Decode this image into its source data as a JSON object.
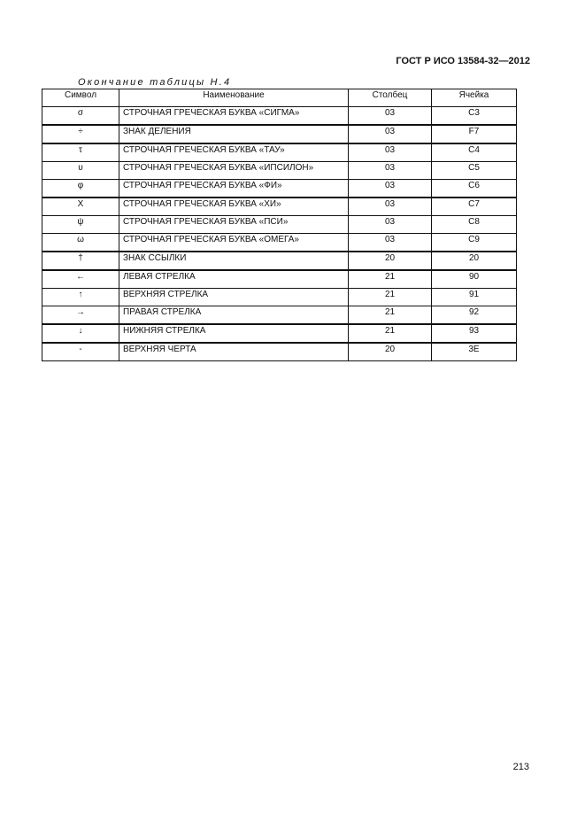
{
  "header": {
    "doc_id": "ГОСТ Р ИСО 13584-32—2012"
  },
  "caption": "Окончание таблицы Н.4",
  "table": {
    "columns": [
      "Символ",
      "Наименование",
      "Столбец",
      "Ячейка"
    ],
    "rows": [
      {
        "symbol": "σ",
        "name": "СТРОЧНАЯ ГРЕЧЕСКАЯ БУКВА «СИГМА»",
        "column": "03",
        "cell": "C3"
      },
      {
        "symbol": "÷",
        "name": "ЗНАК ДЕЛЕНИЯ",
        "column": "03",
        "cell": "F7"
      },
      {
        "symbol": "τ",
        "name": "СТРОЧНАЯ ГРЕЧЕСКАЯ БУКВА «ТАУ»",
        "column": "03",
        "cell": "C4"
      },
      {
        "symbol": "υ",
        "name": "СТРОЧНАЯ ГРЕЧЕСКАЯ БУКВА «ИПСИЛОН»",
        "column": "03",
        "cell": "C5"
      },
      {
        "symbol": "φ",
        "name": "СТРОЧНАЯ ГРЕЧЕСКАЯ БУКВА «ФИ»",
        "column": "03",
        "cell": "C6"
      },
      {
        "symbol": "Χ",
        "name": "СТРОЧНАЯ ГРЕЧЕСКАЯ БУКВА «ХИ»",
        "column": "03",
        "cell": "C7"
      },
      {
        "symbol": "ψ",
        "name": "СТРОЧНАЯ ГРЕЧЕСКАЯ БУКВА «ПСИ»",
        "column": "03",
        "cell": "C8"
      },
      {
        "symbol": "ω",
        "name": "СТРОЧНАЯ ГРЕЧЕСКАЯ БУКВА «ОМЕГА»",
        "column": "03",
        "cell": "C9"
      },
      {
        "symbol": "†",
        "name": "ЗНАК ССЫЛКИ",
        "column": "20",
        "cell": "20"
      },
      {
        "symbol": "←",
        "name": "ЛЕВАЯ СТРЕЛКА",
        "column": "21",
        "cell": "90"
      },
      {
        "symbol": "↑",
        "name": "ВЕРХНЯЯ СТРЕЛКА",
        "column": "21",
        "cell": "91"
      },
      {
        "symbol": "→",
        "name": "ПРАВАЯ СТРЕЛКА",
        "column": "21",
        "cell": "92"
      },
      {
        "symbol": "↓",
        "name": "НИЖНЯЯ СТРЕЛКА",
        "column": "21",
        "cell": "93"
      },
      {
        "symbol": "-",
        "name": "ВЕРХНЯЯ ЧЕРТА",
        "column": "20",
        "cell": "3E"
      }
    ]
  },
  "page_number": "213"
}
